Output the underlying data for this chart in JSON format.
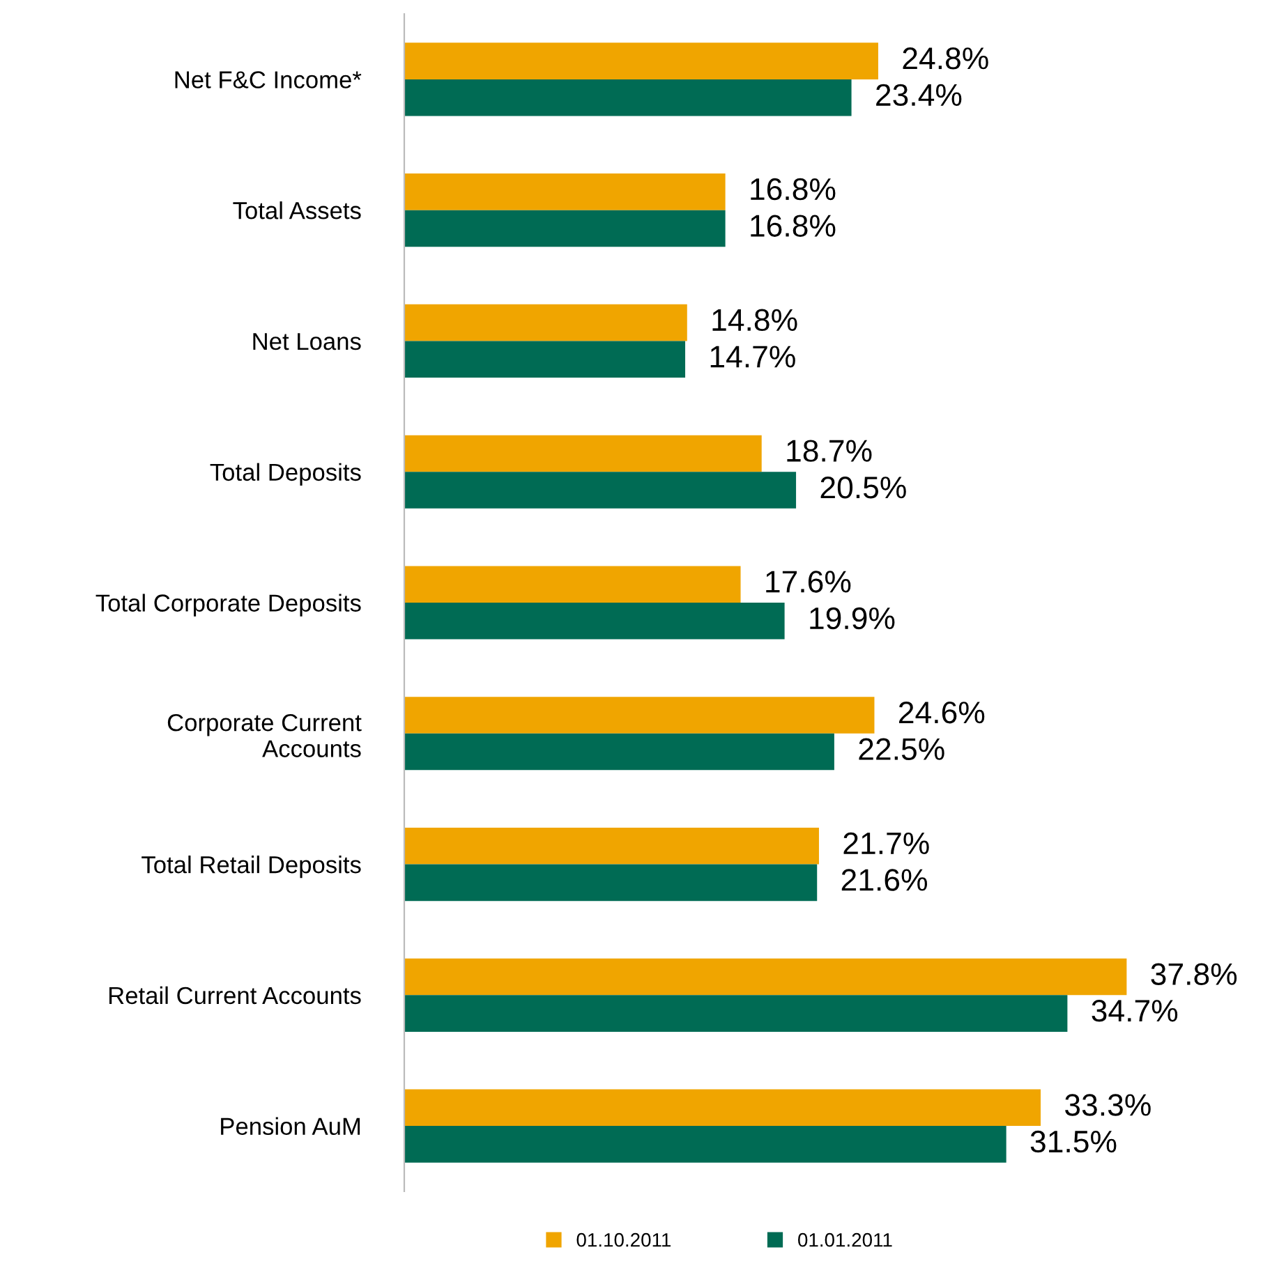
{
  "chart_data": {
    "type": "bar",
    "orientation": "horizontal",
    "categories": [
      "Net F&C Income*",
      "Total Assets",
      "Net Loans",
      "Total Deposits",
      "Total Corporate Deposits",
      "Corporate Current\nAccounts",
      "Total Retail Deposits",
      "Retail Current Accounts",
      "Pension AuM"
    ],
    "series": [
      {
        "name": "01.10.2011",
        "color": "#f0a500",
        "values": [
          24.8,
          16.8,
          14.8,
          18.7,
          17.6,
          24.6,
          21.7,
          37.8,
          33.3
        ],
        "value_labels": [
          "24.8%",
          "16.8%",
          "14.8%",
          "18.7%",
          "17.6%",
          "24.6%",
          "21.7%",
          "37.8%",
          "33.3%"
        ]
      },
      {
        "name": "01.01.2011",
        "color": "#006b54",
        "values": [
          23.4,
          16.8,
          14.7,
          20.5,
          19.9,
          22.5,
          21.6,
          34.7,
          31.5
        ],
        "value_labels": [
          "23.4%",
          "16.8%",
          "14.7%",
          "20.5%",
          "19.9%",
          "22.5%",
          "21.6%",
          "34.7%",
          "31.5%"
        ]
      }
    ],
    "legend": "bottom",
    "grid": false
  }
}
